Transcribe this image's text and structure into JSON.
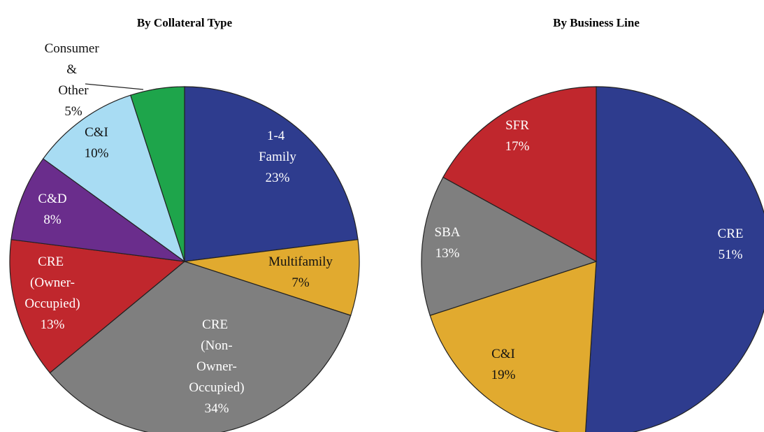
{
  "chart_data": [
    {
      "type": "pie",
      "title": "By Collateral Type",
      "categories": [
        "1-4 Family",
        "Multifamily",
        "CRE (Non-Owner-Occupied)",
        "CRE (Owner-Occupied)",
        "C&D",
        "C&I",
        "Consumer & Other"
      ],
      "values": [
        23,
        7,
        34,
        13,
        8,
        10,
        5
      ],
      "value_labels": [
        "23%",
        "7%",
        "34%",
        "13%",
        "8%",
        "10%",
        "5%"
      ],
      "colors": [
        "#2e3c8e",
        "#e1aa2f",
        "#7f7f7f",
        "#c0272d",
        "#6a2d8c",
        "#a8dcf3",
        "#1ea54b"
      ]
    },
    {
      "type": "pie",
      "title": "By Business Line",
      "categories": [
        "CRE",
        "C&I",
        "SBA",
        "SFR"
      ],
      "values": [
        51,
        19,
        13,
        17
      ],
      "value_labels": [
        "51%",
        "19%",
        "13%",
        "17%"
      ],
      "colors": [
        "#2e3c8e",
        "#e1aa2f",
        "#7f7f7f",
        "#c0272d"
      ]
    }
  ]
}
